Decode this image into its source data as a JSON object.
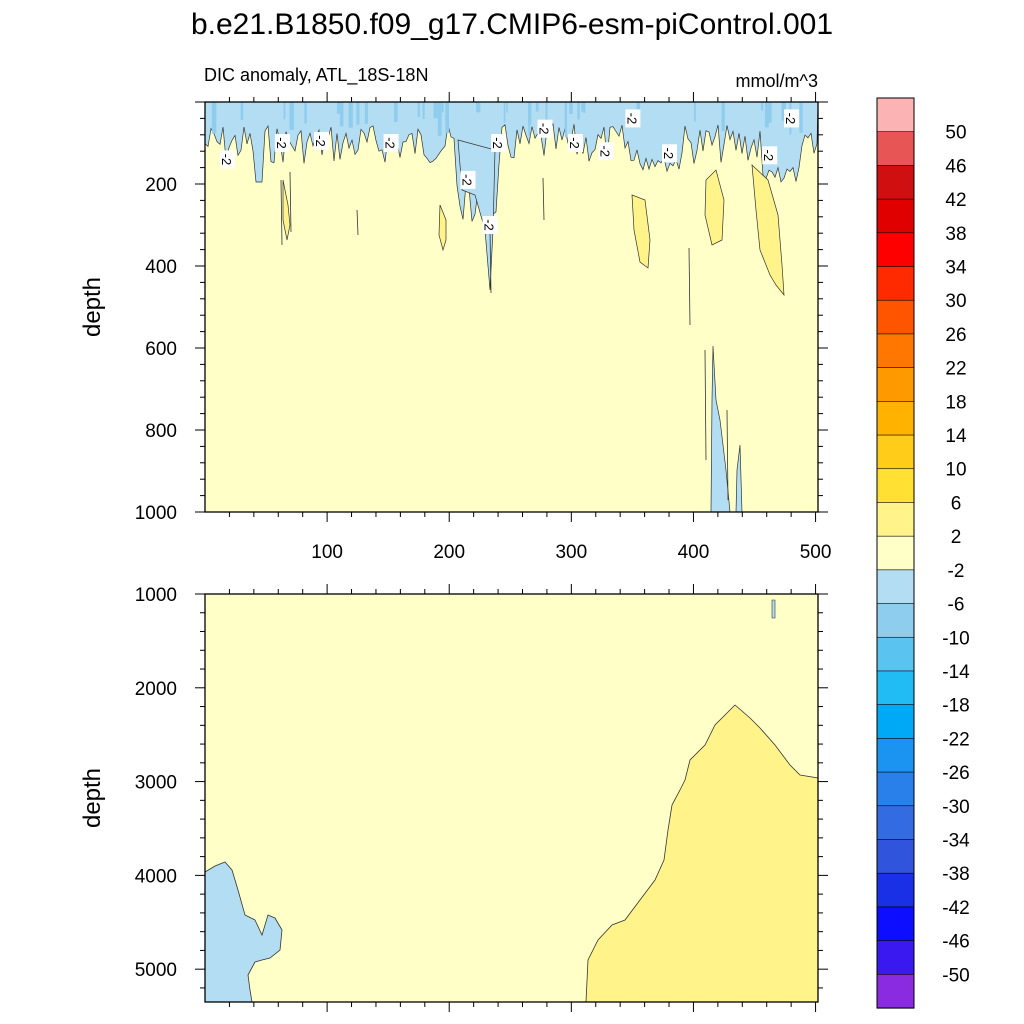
{
  "figure": {
    "title": "b.e21.B1850.f09_g17.CMIP6-esm-piControl.001",
    "subtitle_left": "DIC anomaly, ATL_18S-18N",
    "subtitle_right": "mmol/m^3"
  },
  "chart_data": [
    {
      "type": "contour",
      "panel": "upper",
      "title": "DIC anomaly, ATL_18S-18N",
      "units": "mmol/m^3",
      "xlabel": "",
      "ylabel": "depth",
      "xlim": [
        0,
        502
      ],
      "ylim": [
        1000,
        0
      ],
      "xticks": [
        100,
        200,
        300,
        400,
        500
      ],
      "yticks": [
        200,
        400,
        600,
        800,
        1000
      ],
      "background_class": "-2 to 2",
      "contour_labels": [
        {
          "text": "-2",
          "x": 18,
          "y": 140
        },
        {
          "text": "-2",
          "x": 63,
          "y": 100
        },
        {
          "text": "-2",
          "x": 95,
          "y": 95
        },
        {
          "text": "-2",
          "x": 152,
          "y": 100
        },
        {
          "text": "-2",
          "x": 215,
          "y": 190
        },
        {
          "text": "-2",
          "x": 233,
          "y": 300
        },
        {
          "text": "-2",
          "x": 240,
          "y": 100
        },
        {
          "text": "-2",
          "x": 278,
          "y": 65
        },
        {
          "text": "-2",
          "x": 303,
          "y": 100
        },
        {
          "text": "-2",
          "x": 328,
          "y": 120
        },
        {
          "text": "-2",
          "x": 350,
          "y": 40
        },
        {
          "text": "-2",
          "x": 380,
          "y": 125
        },
        {
          "text": "-2",
          "x": 462,
          "y": 130
        },
        {
          "text": "-2",
          "x": 480,
          "y": 40
        }
      ]
    },
    {
      "type": "contour",
      "panel": "lower",
      "xlabel": "",
      "ylabel": "depth",
      "xlim": [
        0,
        502
      ],
      "ylim": [
        5350,
        1000
      ],
      "yticks": [
        1000,
        2000,
        3000,
        4000,
        5000
      ],
      "background_class": "-2 to 2"
    }
  ],
  "colorbar": {
    "labels": [
      "50",
      "46",
      "42",
      "38",
      "34",
      "30",
      "26",
      "22",
      "18",
      "14",
      "10",
      "6",
      "2",
      "-2",
      "-6",
      "-10",
      "-14",
      "-18",
      "-22",
      "-26",
      "-30",
      "-34",
      "-38",
      "-42",
      "-46",
      "-50"
    ],
    "colors_top_to_bottom": [
      "#fbb3b3",
      "#e85555",
      "#d01010",
      "#e00000",
      "#ff0000",
      "#ff2a00",
      "#ff5500",
      "#ff7700",
      "#ff9900",
      "#ffb300",
      "#ffcc1a",
      "#ffe033",
      "#fff38a",
      "#ffffc8",
      "#b3ddf2",
      "#8fcdee",
      "#5bc3f0",
      "#22bcf5",
      "#00a9f5",
      "#1a94f0",
      "#2a80ea",
      "#336be3",
      "#3055dc",
      "#1a30e6",
      "#0d0dff",
      "#3a18f0",
      "#8a2be2"
    ]
  }
}
